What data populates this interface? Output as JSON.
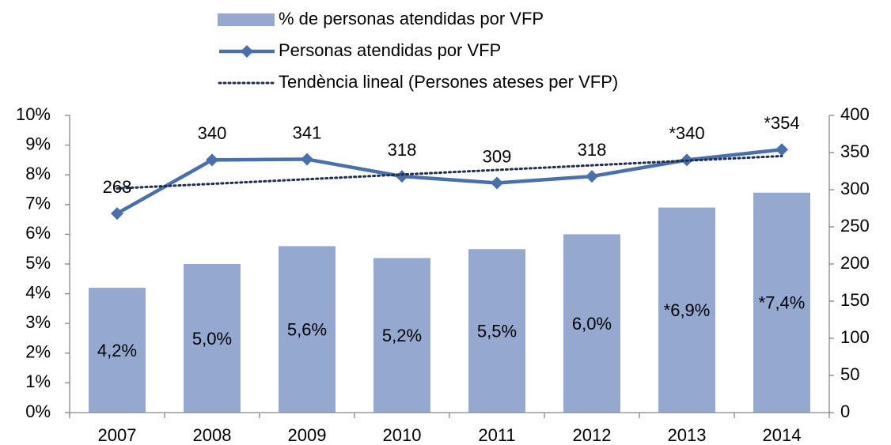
{
  "chart_data": {
    "type": "bar",
    "categories": [
      "2007",
      "2008",
      "2009",
      "2010",
      "2011",
      "2012",
      "2013",
      "2014"
    ],
    "series": [
      {
        "name": "% de personas atendidas por VFP",
        "type": "bar",
        "axis": "y",
        "color": "#95a9d0",
        "values": [
          4.2,
          5.0,
          5.6,
          5.2,
          5.5,
          6.0,
          6.9,
          7.4
        ],
        "value_labels": [
          "4,2%",
          "5,0%",
          "5,6%",
          "5,2%",
          "5,5%",
          "6,0%",
          "*6,9%",
          "*7,4%"
        ]
      },
      {
        "name": "Personas atendidas por VFP",
        "type": "line",
        "axis": "y2",
        "color": "#4a70aa",
        "marker": "diamond",
        "values": [
          268,
          340,
          341,
          318,
          309,
          318,
          340,
          354
        ],
        "value_labels": [
          "268",
          "340",
          "341",
          "318",
          "309",
          "318",
          "*340",
          "*354"
        ]
      },
      {
        "name": "Tendència lineal (Persones ateses per VFP)",
        "type": "line",
        "axis": "y2",
        "color": "#1f2d4f",
        "dash": "dotted",
        "values": [
          301.7,
          307.9,
          314.1,
          320.4,
          326.6,
          332.8,
          339.1,
          345.3
        ]
      }
    ],
    "ylim": [
      0,
      10
    ],
    "yticks": [
      {
        "value": 0,
        "label": "0%"
      },
      {
        "value": 1,
        "label": "1%"
      },
      {
        "value": 2,
        "label": "2%"
      },
      {
        "value": 3,
        "label": "3%"
      },
      {
        "value": 4,
        "label": "4%"
      },
      {
        "value": 5,
        "label": "5%"
      },
      {
        "value": 6,
        "label": "6%"
      },
      {
        "value": 7,
        "label": "7%"
      },
      {
        "value": 8,
        "label": "8%"
      },
      {
        "value": 9,
        "label": "9%"
      },
      {
        "value": 10,
        "label": "10%"
      }
    ],
    "y2lim": [
      0,
      400
    ],
    "y2ticks": [
      0,
      50,
      100,
      150,
      200,
      250,
      300,
      350,
      400
    ],
    "grid": false,
    "legend": "top"
  }
}
